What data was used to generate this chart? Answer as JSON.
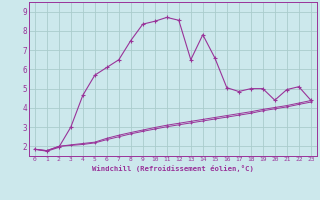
{
  "xlabel": "Windchill (Refroidissement éolien,°C)",
  "background_color": "#cce8ec",
  "grid_color": "#aacccc",
  "line_color": "#993399",
  "xlim": [
    -0.5,
    23.5
  ],
  "ylim": [
    1.5,
    9.5
  ],
  "xticks": [
    0,
    1,
    2,
    3,
    4,
    5,
    6,
    7,
    8,
    9,
    10,
    11,
    12,
    13,
    14,
    15,
    16,
    17,
    18,
    19,
    20,
    21,
    22,
    23
  ],
  "yticks": [
    2,
    3,
    4,
    5,
    6,
    7,
    8,
    9
  ],
  "series1_x": [
    0,
    1,
    2,
    3,
    4,
    5,
    6,
    7,
    8,
    9,
    10,
    11,
    12,
    13,
    14,
    15,
    16,
    17,
    18,
    19,
    20,
    21,
    22,
    23
  ],
  "series1_y": [
    1.85,
    1.75,
    1.95,
    3.0,
    4.65,
    5.7,
    6.1,
    6.5,
    7.5,
    8.35,
    8.5,
    8.7,
    8.55,
    6.5,
    7.8,
    6.6,
    5.05,
    4.85,
    5.0,
    5.0,
    4.4,
    4.95,
    5.1,
    4.4
  ],
  "series2_x": [
    0,
    1,
    2,
    3,
    4,
    5,
    6,
    7,
    8,
    9,
    10,
    11,
    12,
    13,
    14,
    15,
    16,
    17,
    18,
    19,
    20,
    21,
    22,
    23
  ],
  "series2_y": [
    1.85,
    1.78,
    2.0,
    2.05,
    2.1,
    2.18,
    2.35,
    2.5,
    2.65,
    2.78,
    2.9,
    3.02,
    3.12,
    3.22,
    3.32,
    3.42,
    3.52,
    3.62,
    3.72,
    3.85,
    3.95,
    4.05,
    4.18,
    4.3
  ],
  "series3_x": [
    0,
    1,
    2,
    3,
    4,
    5,
    6,
    7,
    8,
    9,
    10,
    11,
    12,
    13,
    14,
    15,
    16,
    17,
    18,
    19,
    20,
    21,
    22,
    23
  ],
  "series3_y": [
    1.85,
    1.78,
    2.0,
    2.08,
    2.15,
    2.22,
    2.42,
    2.58,
    2.72,
    2.85,
    2.98,
    3.1,
    3.2,
    3.3,
    3.4,
    3.5,
    3.6,
    3.7,
    3.8,
    3.92,
    4.02,
    4.12,
    4.25,
    4.38
  ]
}
